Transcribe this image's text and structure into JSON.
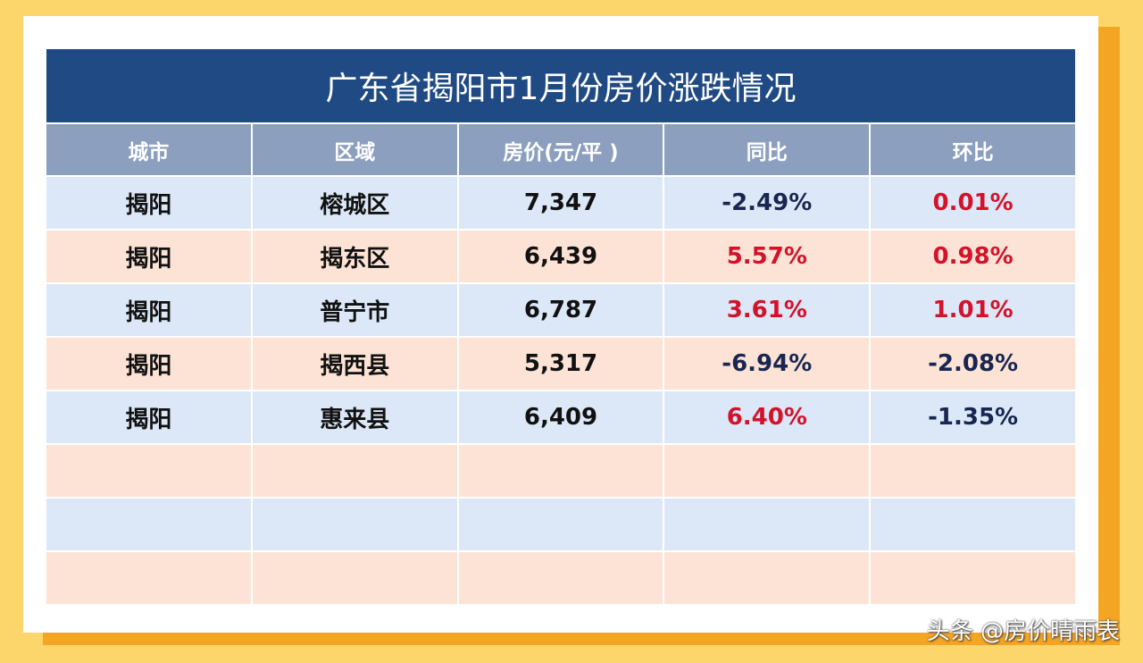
{
  "header": {
    "title": "广东省揭阳市1月份房价涨跌情况"
  },
  "table": {
    "columns": [
      "城市",
      "区域",
      "房价(元/平 )",
      "同比",
      "环比"
    ],
    "rows": [
      [
        "揭阳",
        "榕城区",
        "7,347",
        "-2.49%",
        "0.01%"
      ],
      [
        "揭阳",
        "揭东区",
        "6,439",
        "5.57%",
        "0.98%"
      ],
      [
        "揭阳",
        "普宁市",
        "6,787",
        "3.61%",
        "1.01%"
      ],
      [
        "揭阳",
        "揭西县",
        "5,317",
        "-6.94%",
        "-2.08%"
      ],
      [
        "揭阳",
        "惠来县",
        "6,409",
        "6.40%",
        "-1.35%"
      ]
    ]
  },
  "watermark": "头条 @房价晴雨表"
}
